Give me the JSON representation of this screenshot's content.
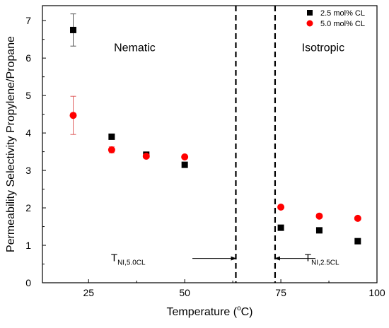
{
  "chart_data": {
    "type": "scatter",
    "xlabel": "Temperature (°C)",
    "xlabel_main": "Temperature (",
    "xlabel_deg": "o",
    "xlabel_unit": "C)",
    "ylabel": "Permeability Selectivity Propylene/Propane",
    "xlim": [
      13,
      100
    ],
    "ylim": [
      0,
      7.4
    ],
    "xticks": [
      25,
      50,
      75,
      100
    ],
    "yticks": [
      0,
      1,
      2,
      3,
      4,
      5,
      6,
      7
    ],
    "grid": false,
    "legend_position": "top-right",
    "series": [
      {
        "name": "2.5 mol% CL",
        "marker": "square",
        "color": "#000000",
        "points": [
          {
            "x": 21,
            "y": 6.75,
            "err": 0.43
          },
          {
            "x": 31,
            "y": 3.9
          },
          {
            "x": 40,
            "y": 3.42
          },
          {
            "x": 50,
            "y": 3.15
          },
          {
            "x": 75,
            "y": 1.47
          },
          {
            "x": 85,
            "y": 1.4
          },
          {
            "x": 95,
            "y": 1.11
          }
        ]
      },
      {
        "name": "5.0 mol% CL",
        "marker": "circle",
        "color": "#ff0000",
        "points": [
          {
            "x": 21,
            "y": 4.47,
            "err": 0.51
          },
          {
            "x": 31,
            "y": 3.55,
            "err": 0.08
          },
          {
            "x": 40,
            "y": 3.38
          },
          {
            "x": 50,
            "y": 3.36
          },
          {
            "x": 75,
            "y": 2.02
          },
          {
            "x": 85,
            "y": 1.78
          },
          {
            "x": 95,
            "y": 1.72
          }
        ]
      }
    ],
    "vertical_lines": [
      {
        "x": 63.3,
        "style": "dashed"
      },
      {
        "x": 73.5,
        "style": "dashed"
      }
    ],
    "regions": [
      {
        "text": "Nematic",
        "x": 37,
        "y": 6.3
      },
      {
        "text": "Isotropic",
        "x": 86,
        "y": 6.3
      }
    ],
    "annotations": [
      {
        "main": "T",
        "sub": "NI,5.0CL",
        "label_x": 35.3,
        "label_y": 0.58,
        "arrow_from_x": 52,
        "arrow_to_x": 63.3,
        "arrow_y": 0.65
      },
      {
        "main": "T",
        "sub": "NI,2.5CL",
        "label_x": 85.7,
        "label_y": 0.58,
        "arrow_from_x": 84,
        "arrow_to_x": 73.5,
        "arrow_y": 0.65
      }
    ]
  }
}
